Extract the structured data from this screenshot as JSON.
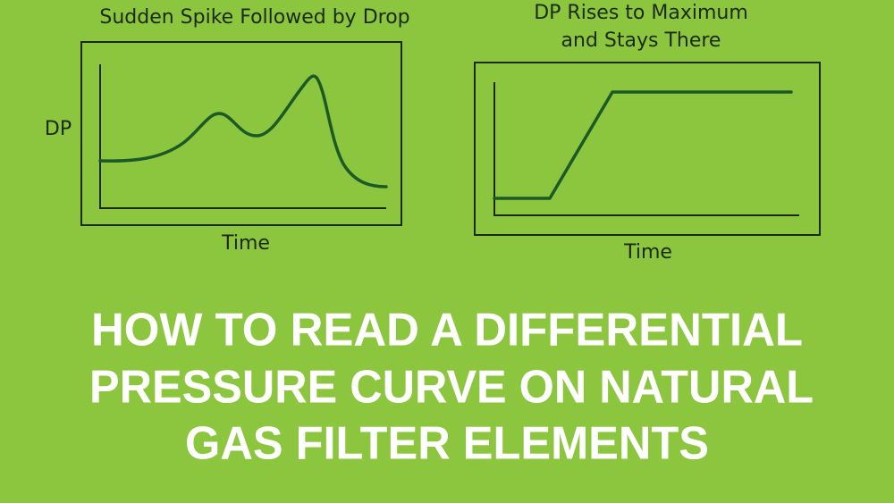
{
  "charts": [
    {
      "title": [
        "Sudden Spike Followed by Drop"
      ],
      "y_label": "DP",
      "x_label": "Time"
    },
    {
      "title": [
        "DP Rises to Maximum",
        "and Stays There"
      ],
      "x_label": "Time"
    }
  ],
  "headline": [
    "HOW TO READ A DIFFERENTIAL",
    "PRESSURE CURVE ON NATURAL",
    "GAS FILTER ELEMENTS"
  ]
}
